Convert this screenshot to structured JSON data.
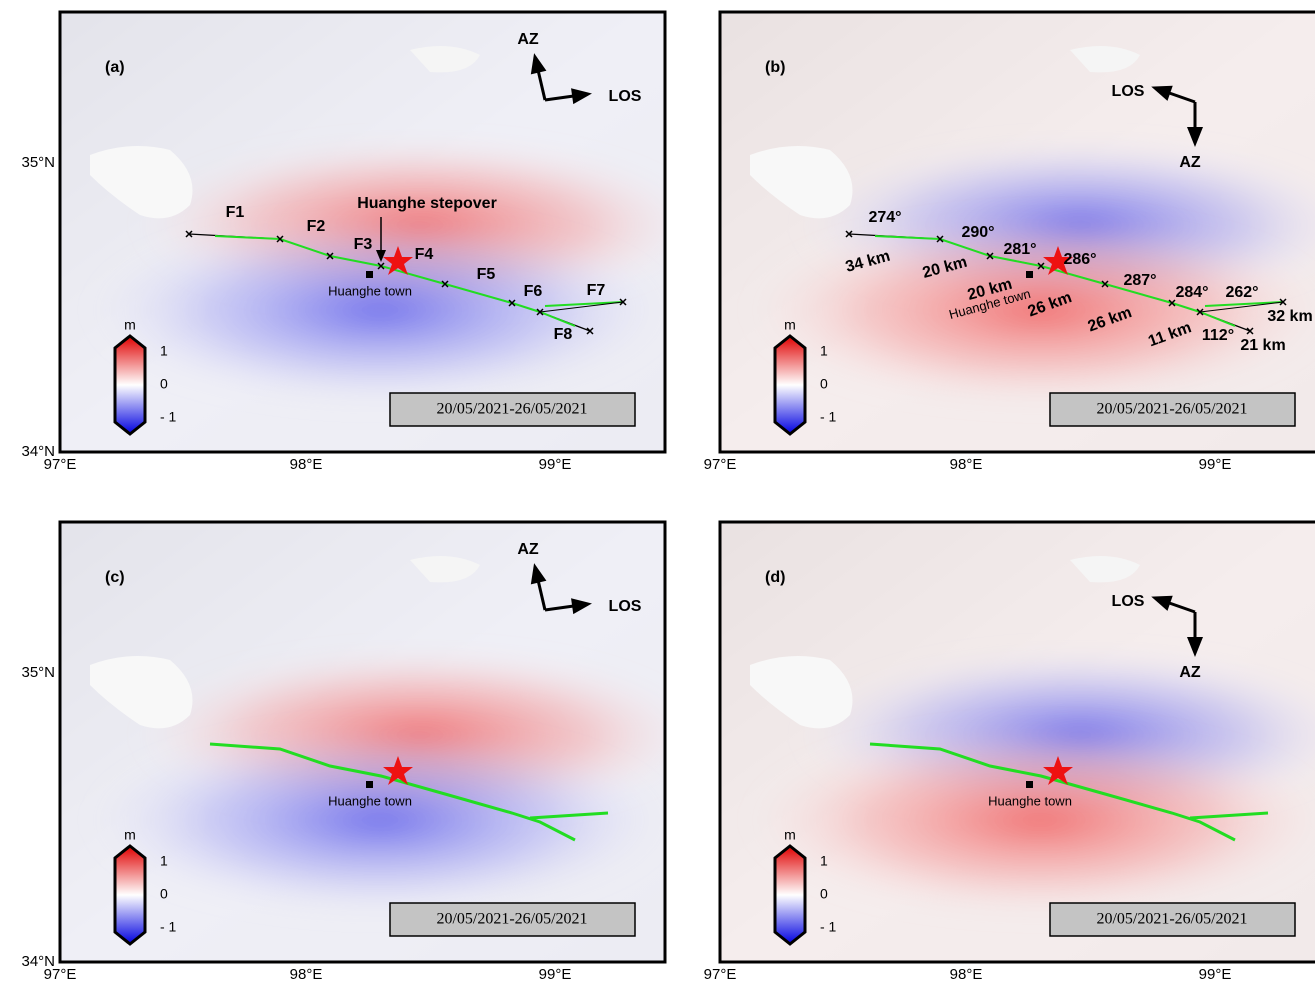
{
  "panels": [
    {
      "label": "(a)",
      "az": "AZ",
      "los": "LOS",
      "town": "Huanghe town",
      "date": "20/05/2021-26/05/2021",
      "colorbar": {
        "unit": "m",
        "ticks": [
          "1",
          "0",
          "- 1"
        ]
      },
      "lat": [
        "35°N",
        "34°N"
      ],
      "lon": [
        "97°E",
        "98°E",
        "99°E"
      ],
      "stepover": "Huanghe stepover",
      "faults": [
        "F1",
        "F2",
        "F3",
        "F4",
        "F5",
        "F6",
        "F7",
        "F8"
      ]
    },
    {
      "label": "(b)",
      "az": "AZ",
      "los": "LOS",
      "town": "Huanghe town",
      "date": "20/05/2021-26/05/2021",
      "colorbar": {
        "unit": "m",
        "ticks": [
          "1",
          "0",
          "- 1"
        ]
      },
      "lon": [
        "97°E",
        "98°E",
        "99°E"
      ],
      "azimuths": [
        "274°",
        "290°",
        "281°",
        "286°",
        "287°",
        "284°",
        "262°",
        "112°"
      ],
      "lengths": [
        "34 km",
        "20 km",
        "20 km",
        "26 km",
        "26 km",
        "11 km",
        "21 km",
        "32 km"
      ]
    },
    {
      "label": "(c)",
      "az": "AZ",
      "los": "LOS",
      "town": "Huanghe town",
      "date": "20/05/2021-26/05/2021",
      "colorbar": {
        "unit": "m",
        "ticks": [
          "1",
          "0",
          "- 1"
        ]
      },
      "lat": [
        "35°N",
        "34°N"
      ],
      "lon": [
        "97°E",
        "98°E",
        "99°E"
      ]
    },
    {
      "label": "(d)",
      "az": "AZ",
      "los": "LOS",
      "town": "Huanghe town",
      "date": "20/05/2021-26/05/2021",
      "colorbar": {
        "unit": "m",
        "ticks": [
          "1",
          "0",
          "- 1"
        ]
      },
      "lon": [
        "97°E",
        "98°E",
        "99°E"
      ]
    }
  ]
}
